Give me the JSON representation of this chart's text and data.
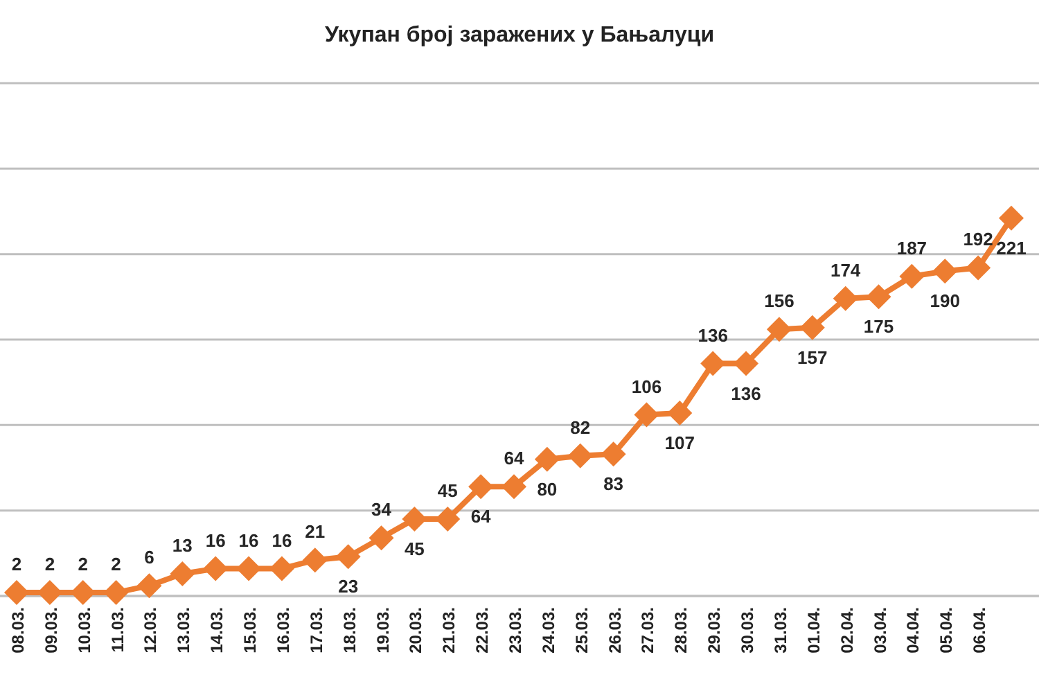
{
  "chart_data": {
    "type": "line",
    "title": "Укупан број заражених у Бањалуци",
    "categories": [
      "08.03.",
      "09.03.",
      "10.03.",
      "11.03.",
      "12.03.",
      "13.03.",
      "14.03.",
      "15.03.",
      "16.03.",
      "17.03.",
      "18.03.",
      "19.03.",
      "20.03.",
      "21.03.",
      "22.03.",
      "23.03.",
      "24.03.",
      "25.03.",
      "26.03.",
      "27.03.",
      "28.03.",
      "29.03.",
      "30.03.",
      "31.03.",
      "01.04.",
      "02.04.",
      "03.04.",
      "04.04.",
      "05.04.",
      "06.04.",
      null
    ],
    "series": [
      {
        "color": "#ed7d31",
        "values": [
          2,
          2,
          2,
          2,
          6,
          13,
          16,
          16,
          16,
          21,
          23,
          34,
          45,
          45,
          64,
          64,
          80,
          82,
          83,
          106,
          107,
          136,
          136,
          156,
          157,
          174,
          175,
          187,
          190,
          192,
          221
        ]
      }
    ],
    "ylim": [
      0,
      300
    ],
    "yticks": [
      {
        "value": 0,
        "label": null
      },
      {
        "value": 50,
        "label": null
      },
      {
        "value": 100,
        "label": null
      },
      {
        "value": 150,
        "label": null
      },
      {
        "value": 200,
        "label": null
      },
      {
        "value": 250,
        "label": null
      },
      {
        "value": 300,
        "label": null
      }
    ],
    "grid": "y",
    "tick_labels": "x",
    "marker": "diamond",
    "line_style": "solid",
    "data_labels": true
  }
}
